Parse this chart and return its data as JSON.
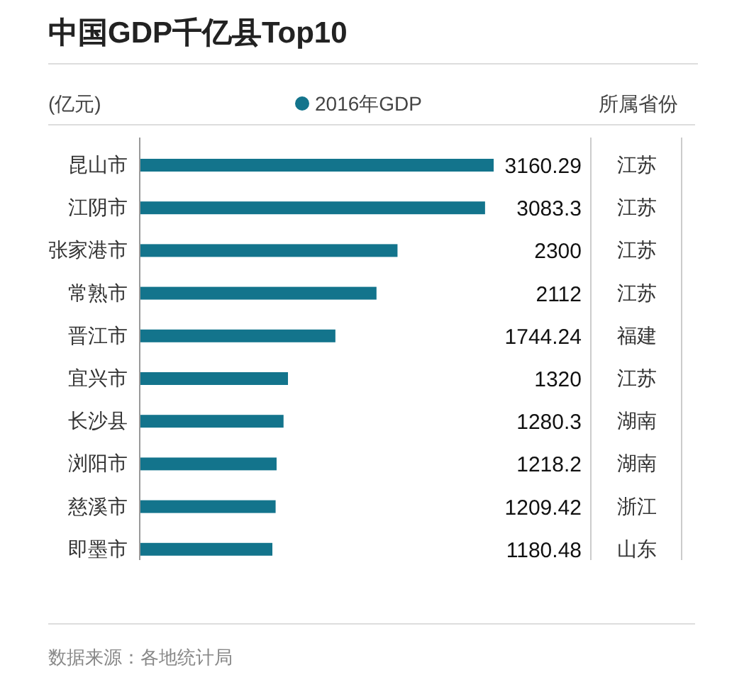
{
  "chart_data": {
    "type": "bar",
    "orientation": "horizontal",
    "title": "中国GDP千亿县Top10",
    "xlabel": "(亿元)",
    "categories": [
      "昆山市",
      "江阴市",
      "张家港市",
      "常熟市",
      "晋江市",
      "宜兴市",
      "长沙县",
      "浏阳市",
      "慈溪市",
      "即墨市"
    ],
    "series": [
      {
        "name": "2016年GDP",
        "color": "#13748c",
        "values": [
          3160.29,
          3083.3,
          2300,
          2112,
          1744.24,
          1320,
          1280.3,
          1218.2,
          1209.42,
          1180.48
        ]
      }
    ],
    "data_labels": true,
    "y2_categories": [
      "江苏",
      "江苏",
      "江苏",
      "江苏",
      "福建",
      "江苏",
      "湖南",
      "湖南",
      "浙江",
      "山东"
    ],
    "legend": "top",
    "annotations": [
      "所属省份",
      "数据来源：各地统计局"
    ]
  }
}
